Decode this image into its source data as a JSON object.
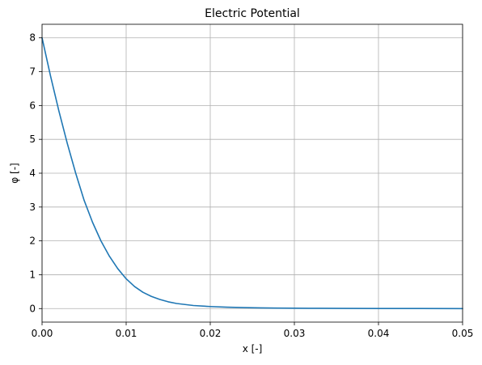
{
  "chart_data": {
    "type": "line",
    "title": "Electric Potential",
    "xlabel": "x [-]",
    "ylabel": "φ  [-]",
    "xlim": [
      0,
      0.05
    ],
    "ylim": [
      -0.4,
      8.4
    ],
    "xticks": [
      0,
      0.01,
      0.02,
      0.03,
      0.04,
      0.05
    ],
    "xtick_labels": [
      "0.00",
      "0.01",
      "0.02",
      "0.03",
      "0.04",
      "0.05"
    ],
    "yticks": [
      0,
      1,
      2,
      3,
      4,
      5,
      6,
      7,
      8
    ],
    "ytick_labels": [
      "0",
      "1",
      "2",
      "3",
      "4",
      "5",
      "6",
      "7",
      "8"
    ],
    "grid": true,
    "series": [
      {
        "color": "#1f77b4",
        "x": [
          0,
          0.001,
          0.002,
          0.003,
          0.004,
          0.005,
          0.006,
          0.007,
          0.008,
          0.009,
          0.01,
          0.011,
          0.012,
          0.013,
          0.014,
          0.015,
          0.016,
          0.018,
          0.02,
          0.022,
          0.024,
          0.026,
          0.028,
          0.03,
          0.033,
          0.036,
          0.04,
          0.045,
          0.05
        ],
        "y": [
          8.0,
          6.88,
          5.84,
          4.88,
          4.0,
          3.2,
          2.55,
          2.0,
          1.55,
          1.18,
          0.88,
          0.65,
          0.48,
          0.36,
          0.27,
          0.2,
          0.15,
          0.09,
          0.06,
          0.04,
          0.03,
          0.02,
          0.015,
          0.01,
          0.007,
          0.004,
          0.002,
          0.001,
          0.0
        ]
      }
    ]
  }
}
